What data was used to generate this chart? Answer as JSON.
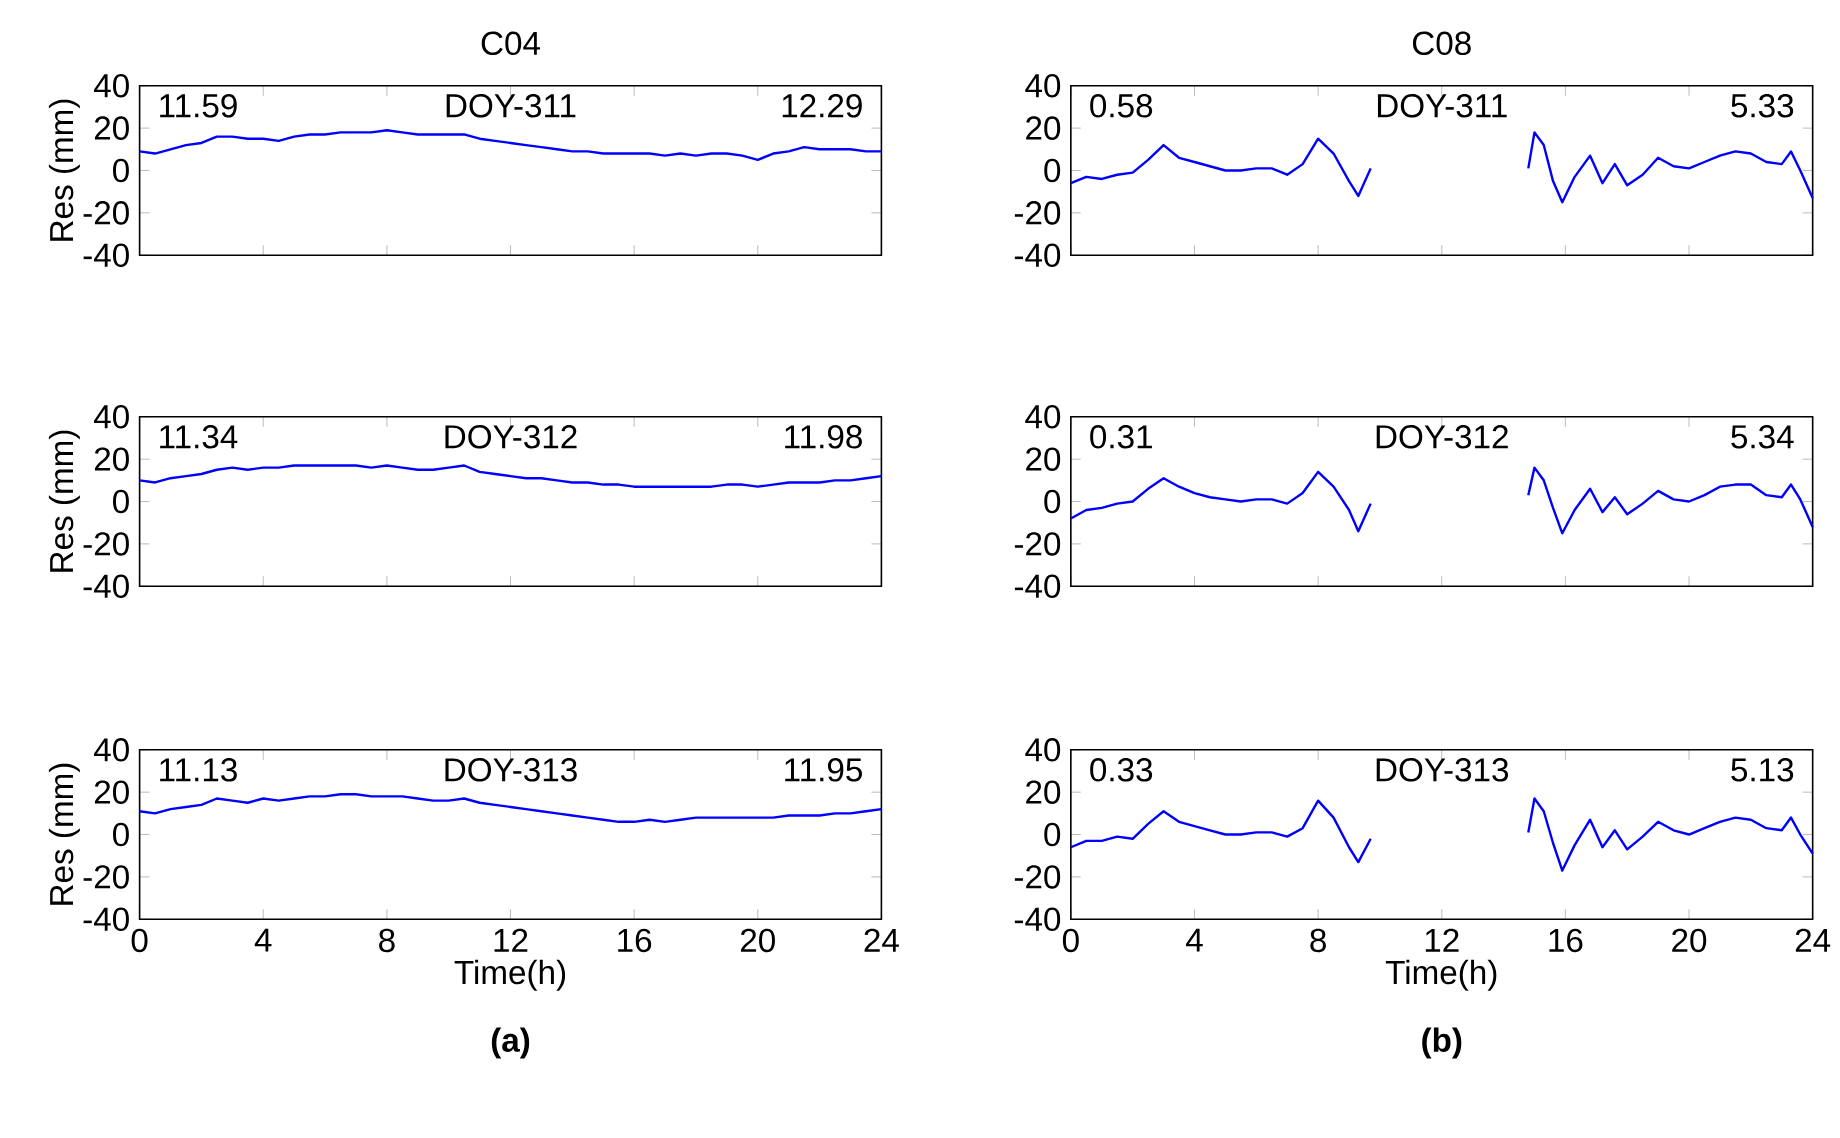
{
  "chart_data": [
    {
      "type": "line",
      "title": "C04",
      "ylabel": "Res (mm)",
      "xlim": [
        0,
        24
      ],
      "ylim": [
        -40,
        40
      ],
      "xticks": [
        0,
        4,
        8,
        12,
        16,
        20,
        24
      ],
      "yticks": [
        -40,
        -20,
        0,
        20,
        40
      ],
      "tick_labels": "y",
      "annotations": [
        "11.59",
        "DOY-311",
        "12.29"
      ],
      "x": [
        0,
        0.5,
        1,
        1.5,
        2,
        2.5,
        3,
        3.5,
        4,
        4.5,
        5,
        5.5,
        6,
        6.5,
        7,
        7.5,
        8,
        8.5,
        9,
        9.5,
        10,
        10.5,
        11,
        11.5,
        12,
        12.5,
        13,
        13.5,
        14,
        14.5,
        15,
        15.5,
        16,
        16.5,
        17,
        17.5,
        18,
        18.5,
        19,
        19.5,
        20,
        20.5,
        21,
        21.5,
        22,
        22.5,
        23,
        23.5,
        24
      ],
      "series": [
        {
          "color": "#0000ff",
          "values": [
            9,
            8,
            10,
            12,
            13,
            16,
            16,
            15,
            15,
            14,
            16,
            17,
            17,
            18,
            18,
            18,
            19,
            18,
            17,
            17,
            17,
            17,
            15,
            14,
            13,
            12,
            11,
            10,
            9,
            9,
            8,
            8,
            8,
            8,
            7,
            8,
            7,
            8,
            8,
            7,
            5,
            8,
            9,
            11,
            10,
            10,
            10,
            9,
            9
          ]
        }
      ]
    },
    {
      "type": "line",
      "title": "C08",
      "xlim": [
        0,
        24
      ],
      "ylim": [
        -40,
        40
      ],
      "xticks": [
        0,
        4,
        8,
        12,
        16,
        20,
        24
      ],
      "yticks": [
        -40,
        -20,
        0,
        20,
        40
      ],
      "tick_labels": "y",
      "annotations": [
        "0.58",
        "DOY-311",
        "5.33"
      ],
      "x": [
        0,
        0.5,
        1,
        1.5,
        2,
        2.5,
        3,
        3.5,
        4,
        4.5,
        5,
        5.5,
        6,
        6.5,
        7,
        7.5,
        8,
        8.5,
        9,
        9.3,
        9.7,
        12,
        14.8,
        15,
        15.3,
        15.6,
        15.9,
        16.3,
        16.8,
        17.2,
        17.6,
        18,
        18.5,
        19,
        19.5,
        20,
        20.5,
        21,
        21.5,
        22,
        22.5,
        23,
        23.3,
        23.6,
        24
      ],
      "series": [
        {
          "color": "#0000ff",
          "values": [
            -6,
            -3,
            -4,
            -2,
            -1,
            5,
            12,
            6,
            4,
            2,
            0,
            0,
            1,
            1,
            -2,
            3,
            15,
            8,
            -5,
            -12,
            1,
            null,
            1,
            18,
            12,
            -5,
            -15,
            -3,
            7,
            -6,
            3,
            -7,
            -2,
            6,
            2,
            1,
            4,
            7,
            9,
            8,
            4,
            3,
            9,
            0,
            -13
          ]
        }
      ]
    },
    {
      "type": "line",
      "ylabel": "Res (mm)",
      "xlim": [
        0,
        24
      ],
      "ylim": [
        -40,
        40
      ],
      "xticks": [
        0,
        4,
        8,
        12,
        16,
        20,
        24
      ],
      "yticks": [
        -40,
        -20,
        0,
        20,
        40
      ],
      "tick_labels": "y",
      "annotations": [
        "11.34",
        "DOY-312",
        "11.98"
      ],
      "x": [
        0,
        0.5,
        1,
        1.5,
        2,
        2.5,
        3,
        3.5,
        4,
        4.5,
        5,
        5.5,
        6,
        6.5,
        7,
        7.5,
        8,
        8.5,
        9,
        9.5,
        10,
        10.5,
        11,
        11.5,
        12,
        12.5,
        13,
        13.5,
        14,
        14.5,
        15,
        15.5,
        16,
        16.5,
        17,
        17.5,
        18,
        18.5,
        19,
        19.5,
        20,
        20.5,
        21,
        21.5,
        22,
        22.5,
        23,
        23.5,
        24
      ],
      "series": [
        {
          "color": "#0000ff",
          "values": [
            10,
            9,
            11,
            12,
            13,
            15,
            16,
            15,
            16,
            16,
            17,
            17,
            17,
            17,
            17,
            16,
            17,
            16,
            15,
            15,
            16,
            17,
            14,
            13,
            12,
            11,
            11,
            10,
            9,
            9,
            8,
            8,
            7,
            7,
            7,
            7,
            7,
            7,
            8,
            8,
            7,
            8,
            9,
            9,
            9,
            10,
            10,
            11,
            12
          ]
        }
      ]
    },
    {
      "type": "line",
      "xlim": [
        0,
        24
      ],
      "ylim": [
        -40,
        40
      ],
      "xticks": [
        0,
        4,
        8,
        12,
        16,
        20,
        24
      ],
      "yticks": [
        -40,
        -20,
        0,
        20,
        40
      ],
      "tick_labels": "y",
      "annotations": [
        "0.31",
        "DOY-312",
        "5.34"
      ],
      "x": [
        0,
        0.5,
        1,
        1.5,
        2,
        2.5,
        3,
        3.5,
        4,
        4.5,
        5,
        5.5,
        6,
        6.5,
        7,
        7.5,
        8,
        8.5,
        9,
        9.3,
        9.7,
        12,
        14.8,
        15,
        15.3,
        15.6,
        15.9,
        16.3,
        16.8,
        17.2,
        17.6,
        18,
        18.5,
        19,
        19.5,
        20,
        20.5,
        21,
        21.5,
        22,
        22.5,
        23,
        23.3,
        23.6,
        24
      ],
      "series": [
        {
          "color": "#0000ff",
          "values": [
            -8,
            -4,
            -3,
            -1,
            0,
            6,
            11,
            7,
            4,
            2,
            1,
            0,
            1,
            1,
            -1,
            4,
            14,
            7,
            -4,
            -14,
            -1,
            null,
            3,
            16,
            10,
            -3,
            -15,
            -4,
            6,
            -5,
            2,
            -6,
            -1,
            5,
            1,
            0,
            3,
            7,
            8,
            8,
            3,
            2,
            8,
            1,
            -12
          ]
        }
      ]
    },
    {
      "type": "line",
      "xlabel": "Time(h)",
      "ylabel": "Res (mm)",
      "xlim": [
        0,
        24
      ],
      "ylim": [
        -40,
        40
      ],
      "xticks": [
        0,
        4,
        8,
        12,
        16,
        20,
        24
      ],
      "yticks": [
        -40,
        -20,
        0,
        20,
        40
      ],
      "annotations": [
        "11.13",
        "DOY-313",
        "11.95",
        "(a)"
      ],
      "x": [
        0,
        0.5,
        1,
        1.5,
        2,
        2.5,
        3,
        3.5,
        4,
        4.5,
        5,
        5.5,
        6,
        6.5,
        7,
        7.5,
        8,
        8.5,
        9,
        9.5,
        10,
        10.5,
        11,
        11.5,
        12,
        12.5,
        13,
        13.5,
        14,
        14.5,
        15,
        15.5,
        16,
        16.5,
        17,
        17.5,
        18,
        18.5,
        19,
        19.5,
        20,
        20.5,
        21,
        21.5,
        22,
        22.5,
        23,
        23.5,
        24
      ],
      "series": [
        {
          "color": "#0000ff",
          "values": [
            11,
            10,
            12,
            13,
            14,
            17,
            16,
            15,
            17,
            16,
            17,
            18,
            18,
            19,
            19,
            18,
            18,
            18,
            17,
            16,
            16,
            17,
            15,
            14,
            13,
            12,
            11,
            10,
            9,
            8,
            7,
            6,
            6,
            7,
            6,
            7,
            8,
            8,
            8,
            8,
            8,
            8,
            9,
            9,
            9,
            10,
            10,
            11,
            12
          ]
        }
      ]
    },
    {
      "type": "line",
      "xlabel": "Time(h)",
      "xlim": [
        0,
        24
      ],
      "ylim": [
        -40,
        40
      ],
      "xticks": [
        0,
        4,
        8,
        12,
        16,
        20,
        24
      ],
      "yticks": [
        -40,
        -20,
        0,
        20,
        40
      ],
      "annotations": [
        "0.33",
        "DOY-313",
        "5.13",
        "(b)"
      ],
      "x": [
        0,
        0.5,
        1,
        1.5,
        2,
        2.5,
        3,
        3.5,
        4,
        4.5,
        5,
        5.5,
        6,
        6.5,
        7,
        7.5,
        8,
        8.5,
        9,
        9.3,
        9.7,
        12,
        14.8,
        15,
        15.3,
        15.6,
        15.9,
        16.3,
        16.8,
        17.2,
        17.6,
        18,
        18.5,
        19,
        19.5,
        20,
        20.5,
        21,
        21.5,
        22,
        22.5,
        23,
        23.3,
        23.6,
        24
      ],
      "series": [
        {
          "color": "#0000ff",
          "values": [
            -6,
            -3,
            -3,
            -1,
            -2,
            5,
            11,
            6,
            4,
            2,
            0,
            0,
            1,
            1,
            -1,
            3,
            16,
            8,
            -6,
            -13,
            -2,
            null,
            1,
            17,
            11,
            -4,
            -17,
            -5,
            7,
            -6,
            2,
            -7,
            -1,
            6,
            2,
            0,
            3,
            6,
            8,
            7,
            3,
            2,
            8,
            0,
            -9
          ]
        }
      ]
    }
  ]
}
